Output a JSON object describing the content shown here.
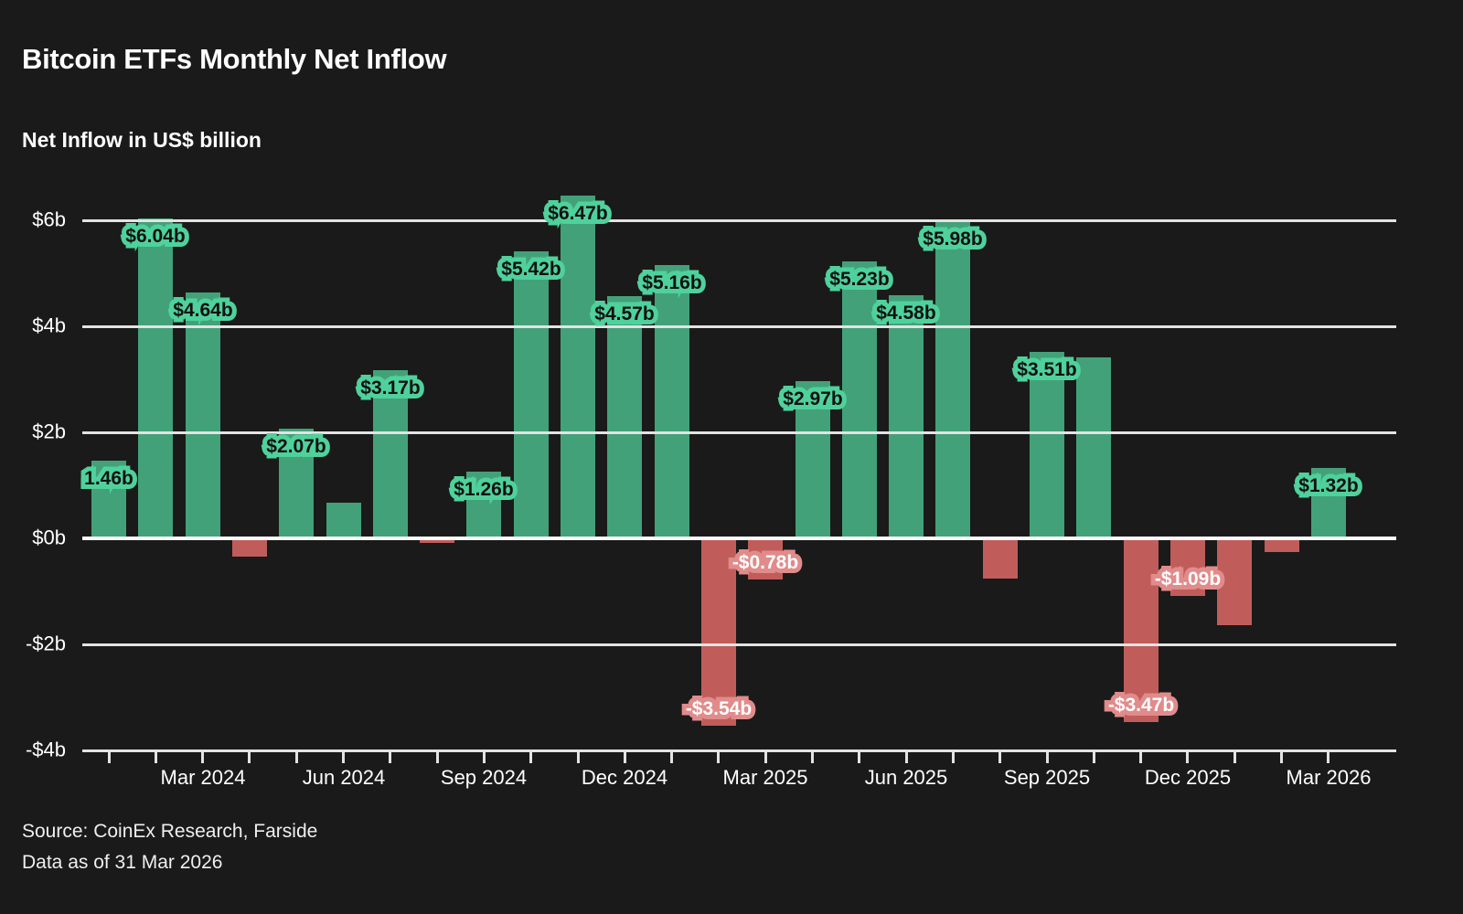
{
  "header": {
    "title": "Bitcoin ETFs Monthly Net Inflow",
    "subtitle": "Net Inflow in US$ billion"
  },
  "footer": {
    "source": "Source: CoinEx Research, Farside",
    "as_of": "Data as of 31 Mar 2026"
  },
  "colors": {
    "background": "#1a1a1a",
    "positive_bar": "#43a17a",
    "positive_label_text": "#111111",
    "positive_label_outline": "#4fd19c",
    "negative_bar": "#c05d5b",
    "negative_label_text": "#ffffff",
    "negative_label_outline": "#e18b8b",
    "gridline": "#e3e3e3",
    "zero_line": "#fafafa",
    "axis_text": "#ffffff"
  },
  "chart_data": {
    "type": "bar",
    "title": "Bitcoin ETFs Monthly Net Inflow",
    "ylabel": "Net Inflow in US$ billion",
    "xlabel": "",
    "ylim": [
      -4,
      6
    ],
    "grid": true,
    "legend": false,
    "categories": [
      "Jan 2024",
      "Feb 2024",
      "Mar 2024",
      "Apr 2024",
      "May 2024",
      "Jun 2024",
      "Jul 2024",
      "Aug 2024",
      "Sep 2024",
      "Oct 2024",
      "Nov 2024",
      "Dec 2024",
      "Jan 2025",
      "Feb 2025",
      "Mar 2025",
      "Apr 2025",
      "May 2025",
      "Jun 2025",
      "Jul 2025",
      "Aug 2025",
      "Sep 2025",
      "Oct 2025",
      "Nov 2025",
      "Dec 2025",
      "Jan 2026",
      "Feb 2026",
      "Mar 2026"
    ],
    "values": [
      1.46,
      6.04,
      4.64,
      -0.34,
      2.07,
      0.67,
      3.17,
      -0.09,
      1.26,
      5.42,
      6.47,
      4.57,
      5.16,
      -3.54,
      -0.78,
      2.97,
      5.23,
      4.58,
      5.98,
      -0.75,
      3.51,
      3.42,
      -3.47,
      -1.09,
      -1.63,
      -0.25,
      1.32
    ],
    "bar_labels": [
      "1.46b",
      "$6.04b",
      "$4.64b",
      null,
      "$2.07b",
      null,
      "$3.17b",
      null,
      "$1.26b",
      "$5.42b",
      "$6.47b",
      "$4.57b",
      "$5.16b",
      "-$3.54b",
      "-$0.78b",
      "$2.97b",
      "$5.23b",
      "$4.58b",
      "$5.98b",
      null,
      "$3.51b",
      null,
      "-$3.47b",
      "-$1.09b",
      null,
      null,
      "$1.32b"
    ],
    "x_tick_label_indices": [
      2,
      5,
      8,
      11,
      14,
      17,
      20,
      23,
      26
    ],
    "x_tick_labels": [
      "Mar 2024",
      "Jun 2024",
      "Sep 2024",
      "Dec 2024",
      "Mar 2025",
      "Jun 2025",
      "Sep 2025",
      "Dec 2025",
      "Mar 2026"
    ],
    "y_ticks": [
      {
        "value": 6,
        "label": "$6b"
      },
      {
        "value": 4,
        "label": "$4b"
      },
      {
        "value": 2,
        "label": "$2b"
      },
      {
        "value": 0,
        "label": "$0b"
      },
      {
        "value": -2,
        "label": "-$2b"
      },
      {
        "value": -4,
        "label": "-$4b"
      }
    ]
  }
}
